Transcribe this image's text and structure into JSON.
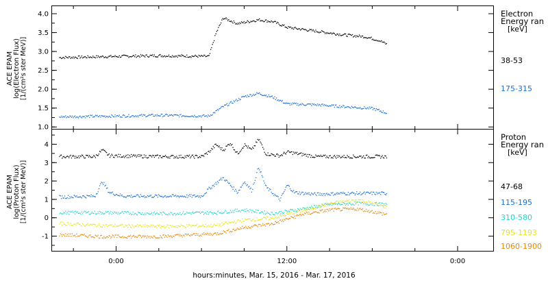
{
  "figure": {
    "xlabel": "hours:minutes, Mar. 15, 2016 - Mar. 17, 2016",
    "x_tick_labels": [
      "0:00",
      "12:00",
      "0:00"
    ]
  },
  "chart_data": [
    {
      "type": "scatter",
      "panel": "electron",
      "ylabel_lines": [
        "ACE EPAM",
        "log(Electron Flux)",
        "[1/(cm²s ster MeV)]"
      ],
      "legend_title_lines": [
        "Electron",
        "Energy ran",
        "[keV]"
      ],
      "legend_placement": "right",
      "ylim": [
        0.95,
        4.2
      ],
      "y_tick_labels": [
        "1.0",
        "1.5",
        "2.0",
        "2.5",
        "3.0",
        "3.5",
        "4.0"
      ],
      "y_ticks": [
        1.0,
        1.5,
        2.0,
        2.5,
        3.0,
        3.5,
        4.0
      ],
      "x_range_hours": [
        -4.5,
        26.5
      ],
      "series": [
        {
          "name": "38-53",
          "color": "#000000",
          "x": [
            -4.0,
            0.0,
            3.0,
            6.5,
            7.0,
            7.5,
            8.5,
            10.0,
            11.0,
            12.0,
            14.0,
            16.0,
            17.5,
            18.5,
            19.0
          ],
          "y": [
            2.85,
            2.88,
            2.9,
            2.88,
            3.5,
            3.9,
            3.75,
            3.85,
            3.8,
            3.65,
            3.55,
            3.45,
            3.4,
            3.3,
            3.2
          ]
        },
        {
          "name": "175-315",
          "color": "#1a6fd8",
          "x": [
            -4.0,
            0.0,
            3.0,
            6.5,
            7.5,
            9.0,
            10.0,
            11.0,
            12.0,
            14.0,
            16.0,
            18.0,
            19.0
          ],
          "y": [
            1.28,
            1.3,
            1.32,
            1.3,
            1.55,
            1.82,
            1.9,
            1.8,
            1.62,
            1.6,
            1.55,
            1.5,
            1.38
          ]
        }
      ]
    },
    {
      "type": "scatter",
      "panel": "proton",
      "ylabel_lines": [
        "ACE EPAM",
        "log(Proton Flux)",
        "[1/(cm²s ster MeV)]"
      ],
      "legend_title_lines": [
        "Proton",
        "Energy ran",
        "[keV]"
      ],
      "legend_placement": "right",
      "ylim": [
        -1.8,
        4.8
      ],
      "y_tick_labels": [
        "-1",
        "0",
        "1",
        "2",
        "3",
        "4"
      ],
      "y_ticks": [
        -1,
        0,
        1,
        2,
        3,
        4
      ],
      "x_range_hours": [
        -4.5,
        26.5
      ],
      "series": [
        {
          "name": "47-68",
          "color": "#000000",
          "x": [
            -4.0,
            -1.5,
            -1.0,
            -0.5,
            3.0,
            6.0,
            6.5,
            7.0,
            7.5,
            8.0,
            8.5,
            9.0,
            9.5,
            10.0,
            10.5,
            11.5,
            12.0,
            14.0,
            16.0,
            19.0
          ],
          "y": [
            3.35,
            3.35,
            3.7,
            3.4,
            3.35,
            3.35,
            3.6,
            4.0,
            3.7,
            4.1,
            3.5,
            4.0,
            3.7,
            4.3,
            3.5,
            3.4,
            3.6,
            3.35,
            3.35,
            3.35
          ]
        },
        {
          "name": "115-195",
          "color": "#1a6fd8",
          "x": [
            -4.0,
            -1.5,
            -1.0,
            -0.5,
            0.5,
            3.0,
            6.0,
            6.5,
            7.5,
            8.5,
            9.0,
            9.5,
            10.0,
            10.5,
            11.5,
            12.0,
            12.5,
            14.0,
            16.0,
            19.0
          ],
          "y": [
            1.15,
            1.2,
            2.0,
            1.4,
            1.2,
            1.2,
            1.2,
            1.6,
            2.2,
            1.4,
            2.0,
            1.5,
            2.8,
            1.7,
            1.0,
            1.8,
            1.4,
            1.3,
            1.35,
            1.35
          ]
        },
        {
          "name": "310-580",
          "color": "#22d6d0",
          "x": [
            -4.0,
            -1.0,
            3.0,
            7.0,
            9.0,
            11.0,
            13.0,
            15.0,
            17.0,
            19.0
          ],
          "y": [
            0.3,
            0.3,
            0.25,
            0.3,
            0.45,
            0.25,
            0.5,
            0.75,
            0.8,
            0.75
          ]
        },
        {
          "name": "795-1193",
          "color": "#e6e61a",
          "x": [
            -4.0,
            -1.0,
            3.0,
            7.0,
            9.0,
            11.0,
            13.0,
            15.0,
            17.0,
            19.0
          ],
          "y": [
            -0.3,
            -0.4,
            -0.45,
            -0.4,
            -0.1,
            0.0,
            0.4,
            0.8,
            1.0,
            0.6
          ]
        },
        {
          "name": "1060-1900",
          "color": "#e8870c",
          "x": [
            -4.0,
            -1.0,
            3.0,
            7.0,
            9.0,
            11.0,
            13.0,
            15.0,
            17.0,
            19.0
          ],
          "y": [
            -0.9,
            -1.0,
            -1.0,
            -0.85,
            -0.5,
            -0.3,
            0.2,
            0.45,
            0.5,
            0.2
          ]
        }
      ]
    }
  ]
}
